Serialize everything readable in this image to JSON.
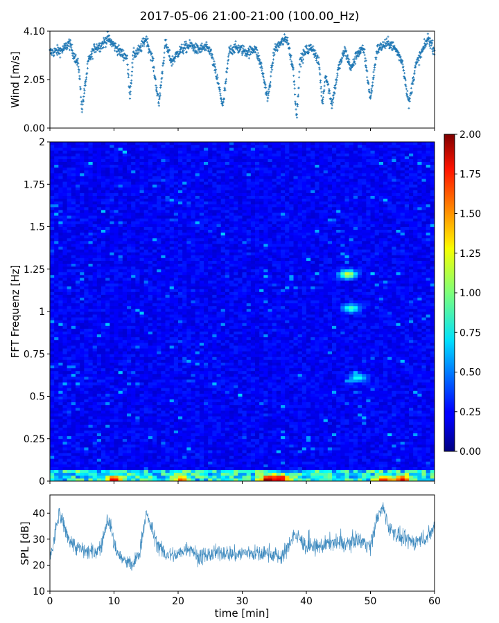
{
  "title": "2017-05-06 21:00-21:00 (100.00_Hz)",
  "chart_data": [
    {
      "type": "scatter",
      "panel": "wind",
      "ylabel": "Wind [m/s]",
      "xlim": [
        0,
        60
      ],
      "ylim": [
        0,
        4.1
      ],
      "ytick_labels": [
        "0.00",
        "2.05",
        "4.10"
      ],
      "yticks": [
        0,
        2.05,
        4.1
      ],
      "xticks": [
        0,
        10,
        20,
        30,
        40,
        50,
        60
      ],
      "color": "#1f77b4",
      "marker": "+",
      "approx_points": [
        [
          0,
          3.2
        ],
        [
          2,
          3.3
        ],
        [
          3,
          3.6
        ],
        [
          4.5,
          2.6
        ],
        [
          5,
          0.8
        ],
        [
          6,
          2.8
        ],
        [
          7,
          3.4
        ],
        [
          8,
          3.5
        ],
        [
          9,
          3.8
        ],
        [
          10,
          3.5
        ],
        [
          11,
          3.2
        ],
        [
          12,
          3.0
        ],
        [
          12.5,
          1.4
        ],
        [
          13,
          3.1
        ],
        [
          14,
          3.3
        ],
        [
          15,
          3.8
        ],
        [
          16,
          2.9
        ],
        [
          17,
          1.0
        ],
        [
          18,
          3.6
        ],
        [
          19,
          2.8
        ],
        [
          20,
          3.2
        ],
        [
          21,
          3.4
        ],
        [
          22,
          3.5
        ],
        [
          23,
          3.3
        ],
        [
          24,
          3.4
        ],
        [
          25,
          3.3
        ],
        [
          26,
          2.2
        ],
        [
          27,
          0.9
        ],
        [
          28,
          3.3
        ],
        [
          29,
          3.4
        ],
        [
          30,
          3.3
        ],
        [
          31,
          3.2
        ],
        [
          32,
          3.4
        ],
        [
          33,
          2.6
        ],
        [
          34,
          1.2
        ],
        [
          35,
          3.3
        ],
        [
          36,
          3.6
        ],
        [
          37,
          3.8
        ],
        [
          38,
          2.4
        ],
        [
          38.5,
          0.4
        ],
        [
          39,
          2.8
        ],
        [
          40,
          3.3
        ],
        [
          41,
          3.4
        ],
        [
          42,
          2.7
        ],
        [
          42.5,
          1.0
        ],
        [
          43,
          2.3
        ],
        [
          44,
          1.0
        ],
        [
          45,
          2.5
        ],
        [
          46,
          3.3
        ],
        [
          47,
          2.5
        ],
        [
          48,
          3.2
        ],
        [
          49,
          3.3
        ],
        [
          50,
          1.2
        ],
        [
          51,
          3.3
        ],
        [
          52,
          3.5
        ],
        [
          53,
          3.6
        ],
        [
          54,
          3.3
        ],
        [
          55,
          2.8
        ],
        [
          56,
          1.0
        ],
        [
          57,
          2.6
        ],
        [
          58,
          3.2
        ],
        [
          59,
          3.8
        ],
        [
          60,
          3.3
        ]
      ]
    },
    {
      "type": "heatmap",
      "panel": "spectrogram",
      "ylabel": "FFT Frequenz [Hz]",
      "xlim": [
        0,
        60
      ],
      "ylim": [
        0,
        2
      ],
      "ytick_labels": [
        "0",
        "0.25",
        "0.5",
        "0.75",
        "1",
        "1.25",
        "1.5",
        "1.75",
        "2"
      ],
      "yticks": [
        0,
        0.25,
        0.5,
        0.75,
        1,
        1.25,
        1.5,
        1.75,
        2
      ],
      "colormap": "jet",
      "clim": [
        0,
        2
      ],
      "colorbar_tick_labels": [
        "0.00",
        "0.25",
        "0.50",
        "0.75",
        "1.00",
        "1.25",
        "1.50",
        "1.75",
        "2.00"
      ],
      "colorbar_ticks": [
        0,
        0.25,
        0.5,
        0.75,
        1,
        1.25,
        1.5,
        1.75,
        2
      ],
      "typical_level": 0.25,
      "low_freq_band": {
        "freq_max": 0.06,
        "typical_level": 0.9
      },
      "hot_spots": [
        {
          "x": 10,
          "f": 0.01,
          "v": 1.8
        },
        {
          "x": 20.5,
          "f": 0.01,
          "v": 1.6
        },
        {
          "x": 34,
          "f": 0.01,
          "v": 2.0
        },
        {
          "x": 36,
          "f": 0.015,
          "v": 1.9
        },
        {
          "x": 52,
          "f": 0.01,
          "v": 1.7
        },
        {
          "x": 55,
          "f": 0.01,
          "v": 1.8
        },
        {
          "x": 46.5,
          "f": 1.22,
          "v": 1.2
        },
        {
          "x": 47,
          "f": 1.02,
          "v": 0.9
        },
        {
          "x": 48,
          "f": 0.61,
          "v": 0.8
        }
      ]
    },
    {
      "type": "line",
      "panel": "spl",
      "ylabel": "SPL [dB]",
      "xlabel": "time [min]",
      "xlim": [
        0,
        60
      ],
      "ylim": [
        10,
        47
      ],
      "ytick_labels": [
        "10",
        "20",
        "30",
        "40"
      ],
      "yticks": [
        10,
        20,
        30,
        40
      ],
      "xtick_labels": [
        "0",
        "10",
        "20",
        "30",
        "40",
        "50",
        "60"
      ],
      "xticks": [
        0,
        10,
        20,
        30,
        40,
        50,
        60
      ],
      "color": "#1f77b4",
      "approx_mean": [
        [
          0,
          24
        ],
        [
          0.5,
          27
        ],
        [
          1,
          35
        ],
        [
          1.5,
          40
        ],
        [
          2,
          36
        ],
        [
          3,
          30
        ],
        [
          4,
          27
        ],
        [
          6,
          25
        ],
        [
          7,
          25
        ],
        [
          8,
          27
        ],
        [
          9,
          38
        ],
        [
          9.5,
          35
        ],
        [
          10,
          28
        ],
        [
          11,
          23
        ],
        [
          12,
          21
        ],
        [
          13,
          20
        ],
        [
          14,
          25
        ],
        [
          15,
          40
        ],
        [
          16,
          33
        ],
        [
          17,
          27
        ],
        [
          18,
          24
        ],
        [
          20,
          24
        ],
        [
          21,
          26
        ],
        [
          22,
          27
        ],
        [
          23,
          23
        ],
        [
          25,
          24
        ],
        [
          27,
          25
        ],
        [
          29,
          24
        ],
        [
          31,
          25
        ],
        [
          33,
          24
        ],
        [
          34,
          25
        ],
        [
          35,
          24
        ],
        [
          36,
          23
        ],
        [
          37,
          26
        ],
        [
          38,
          32
        ],
        [
          39,
          30
        ],
        [
          40,
          27
        ],
        [
          42,
          27
        ],
        [
          44,
          29
        ],
        [
          46,
          28
        ],
        [
          48,
          30
        ],
        [
          49,
          29
        ],
        [
          50,
          27
        ],
        [
          51,
          38
        ],
        [
          52,
          42
        ],
        [
          53,
          34
        ],
        [
          55,
          30
        ],
        [
          57,
          29
        ],
        [
          59,
          31
        ],
        [
          60,
          35
        ]
      ],
      "band_halfwidth": 3.5
    }
  ]
}
